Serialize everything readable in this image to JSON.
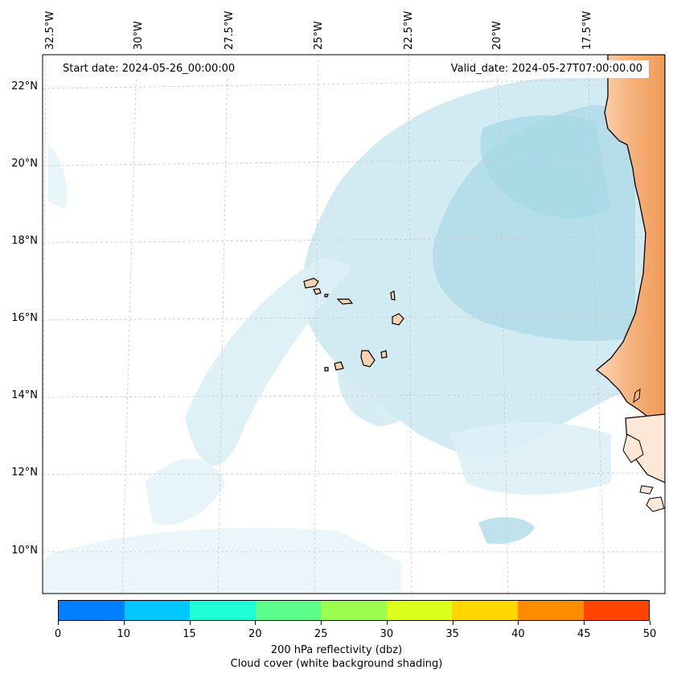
{
  "map": {
    "start_date": "Start date: 2024-05-26_00:00:00",
    "valid_date": "Valid_date: 2024-05-27T07:00:00.00",
    "lon_labels": [
      "32.5°W",
      "30°W",
      "27.5°W",
      "25°W",
      "22.5°W",
      "20°W",
      "17.5°W"
    ],
    "lat_labels": [
      "22°N",
      "20°N",
      "18°N",
      "16°N",
      "14°N",
      "12°N",
      "10°N"
    ],
    "features": [
      "coastline-west-africa",
      "cape-verde-islands",
      "cloud-cover-shading",
      "graticule"
    ],
    "colors": {
      "cloud": "#aad8e6",
      "land_reflectivity": "#f4a460",
      "island_fill": "#f9d2b0",
      "coastline": "#000000",
      "grid": "#c8c8c8"
    }
  },
  "colorbar": {
    "ticks": [
      "0",
      "10",
      "15",
      "20",
      "25",
      "30",
      "35",
      "40",
      "45",
      "50"
    ],
    "colors": [
      "#0080ff",
      "#00c8ff",
      "#1effd8",
      "#5cff8c",
      "#9cff50",
      "#dcff1e",
      "#ffd700",
      "#ff8c00",
      "#ff4500"
    ],
    "label_line1": "200 hPa reflectivity (dbz)",
    "label_line2": "Cloud cover (white background shading)"
  }
}
